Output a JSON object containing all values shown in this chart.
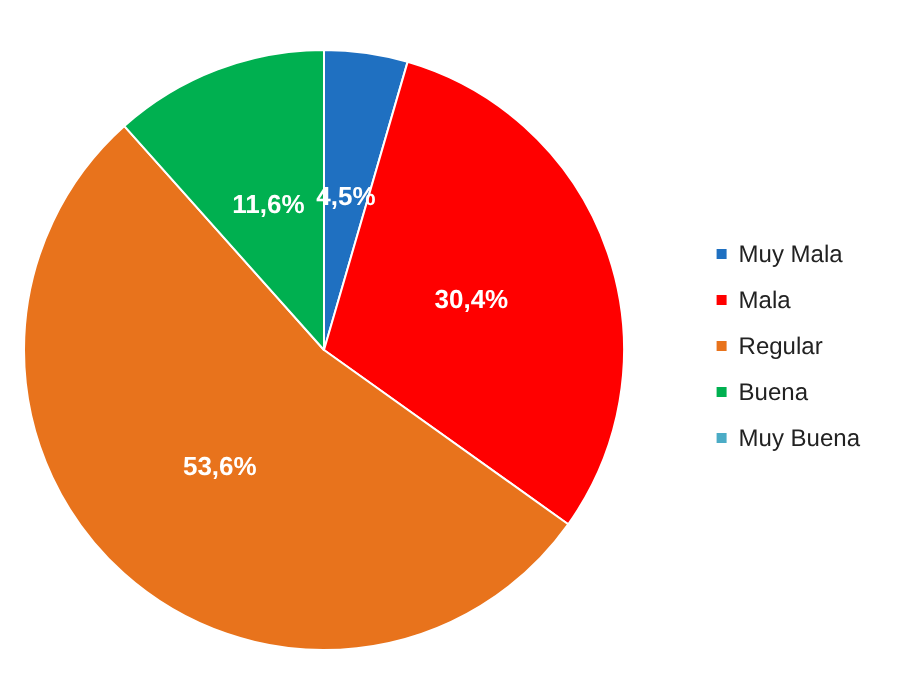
{
  "chart_data": {
    "type": "pie",
    "categories": [
      "Muy Mala",
      "Mala",
      "Regular",
      "Buena",
      "Muy Buena"
    ],
    "values": [
      4.5,
      30.4,
      53.6,
      11.6,
      0
    ],
    "colors": [
      "#1f70c1",
      "#ff0000",
      "#e8731c",
      "#00b050",
      "#4bacc6"
    ],
    "value_labels": [
      "4,5%",
      "30,4%",
      "53,6%",
      "11,6%",
      null
    ],
    "legend": "right"
  }
}
